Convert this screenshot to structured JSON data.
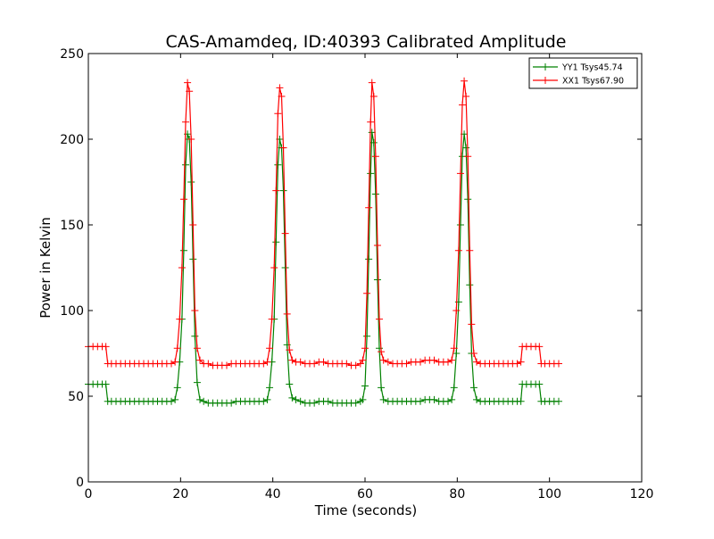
{
  "chart_data": {
    "type": "line",
    "title": "CAS-Amamdeq, ID:40393 Calibrated Amplitude",
    "xlabel": "Time (seconds)",
    "ylabel": "Power in Kelvin",
    "xlim": [
      0,
      120
    ],
    "ylim": [
      0,
      250
    ],
    "xticks": [
      0,
      20,
      40,
      60,
      80,
      100,
      120
    ],
    "yticks": [
      0,
      50,
      100,
      150,
      200,
      250
    ],
    "xtick_labels": [
      "0",
      "20",
      "40",
      "60",
      "80",
      "100",
      "120"
    ],
    "ytick_labels": [
      "0",
      "50",
      "100",
      "150",
      "200",
      "250"
    ],
    "grid": false,
    "legend_position": "top-right",
    "marker": "+",
    "series": [
      {
        "name": "YY1 Tsys45.74",
        "color": "#008000",
        "points": [
          [
            0,
            57
          ],
          [
            1,
            57
          ],
          [
            2,
            57
          ],
          [
            3,
            57
          ],
          [
            3.8,
            57
          ],
          [
            4.2,
            47
          ],
          [
            5,
            47
          ],
          [
            6,
            47
          ],
          [
            7,
            47
          ],
          [
            8,
            47
          ],
          [
            9,
            47
          ],
          [
            10,
            47
          ],
          [
            11,
            47
          ],
          [
            12,
            47
          ],
          [
            13,
            47
          ],
          [
            14,
            47
          ],
          [
            15,
            47
          ],
          [
            16,
            47
          ],
          [
            17,
            47
          ],
          [
            18,
            47
          ],
          [
            18.8,
            48
          ],
          [
            19.3,
            55
          ],
          [
            19.8,
            70
          ],
          [
            20.3,
            95
          ],
          [
            20.7,
            135
          ],
          [
            21.1,
            185
          ],
          [
            21.5,
            203
          ],
          [
            21.9,
            200
          ],
          [
            22.3,
            175
          ],
          [
            22.7,
            130
          ],
          [
            23.1,
            85
          ],
          [
            23.6,
            58
          ],
          [
            24.2,
            48
          ],
          [
            25,
            47
          ],
          [
            26,
            46
          ],
          [
            27,
            46
          ],
          [
            28,
            46
          ],
          [
            29,
            46
          ],
          [
            30,
            46
          ],
          [
            31,
            46
          ],
          [
            32,
            47
          ],
          [
            33,
            47
          ],
          [
            34,
            47
          ],
          [
            35,
            47
          ],
          [
            36,
            47
          ],
          [
            37,
            47
          ],
          [
            38,
            47
          ],
          [
            38.8,
            48
          ],
          [
            39.3,
            55
          ],
          [
            39.8,
            70
          ],
          [
            40.3,
            95
          ],
          [
            40.7,
            140
          ],
          [
            41.1,
            185
          ],
          [
            41.5,
            200
          ],
          [
            41.9,
            195
          ],
          [
            42.3,
            170
          ],
          [
            42.7,
            125
          ],
          [
            43.1,
            80
          ],
          [
            43.6,
            57
          ],
          [
            44.2,
            49
          ],
          [
            45,
            48
          ],
          [
            46,
            47
          ],
          [
            47,
            46
          ],
          [
            48,
            46
          ],
          [
            49,
            46
          ],
          [
            50,
            47
          ],
          [
            51,
            47
          ],
          [
            52,
            47
          ],
          [
            53,
            46
          ],
          [
            54,
            46
          ],
          [
            55,
            46
          ],
          [
            56,
            46
          ],
          [
            57,
            46
          ],
          [
            58,
            46
          ],
          [
            59,
            47
          ],
          [
            59.5,
            48
          ],
          [
            60,
            56
          ],
          [
            60.4,
            85
          ],
          [
            60.8,
            130
          ],
          [
            61.2,
            180
          ],
          [
            61.5,
            204
          ],
          [
            61.9,
            198
          ],
          [
            62.3,
            168
          ],
          [
            62.7,
            118
          ],
          [
            63.1,
            78
          ],
          [
            63.5,
            55
          ],
          [
            64,
            48
          ],
          [
            65,
            47
          ],
          [
            66,
            47
          ],
          [
            67,
            47
          ],
          [
            68,
            47
          ],
          [
            69,
            47
          ],
          [
            70,
            47
          ],
          [
            71,
            47
          ],
          [
            72,
            47
          ],
          [
            73,
            48
          ],
          [
            74,
            48
          ],
          [
            75,
            48
          ],
          [
            76,
            47
          ],
          [
            77,
            47
          ],
          [
            78,
            47
          ],
          [
            78.8,
            48
          ],
          [
            79.3,
            55
          ],
          [
            79.8,
            75
          ],
          [
            80.3,
            105
          ],
          [
            80.7,
            150
          ],
          [
            81.1,
            190
          ],
          [
            81.5,
            203
          ],
          [
            81.9,
            195
          ],
          [
            82.3,
            165
          ],
          [
            82.7,
            115
          ],
          [
            83.1,
            75
          ],
          [
            83.6,
            55
          ],
          [
            84.2,
            48
          ],
          [
            85,
            47
          ],
          [
            86,
            47
          ],
          [
            87,
            47
          ],
          [
            88,
            47
          ],
          [
            89,
            47
          ],
          [
            90,
            47
          ],
          [
            91,
            47
          ],
          [
            92,
            47
          ],
          [
            93,
            47
          ],
          [
            93.8,
            47
          ],
          [
            94.1,
            57
          ],
          [
            95,
            57
          ],
          [
            96,
            57
          ],
          [
            97,
            57
          ],
          [
            97.8,
            57
          ],
          [
            98.2,
            47
          ],
          [
            99,
            47
          ],
          [
            100,
            47
          ],
          [
            101,
            47
          ],
          [
            102,
            47
          ]
        ]
      },
      {
        "name": "XX1 Tsys67.90",
        "color": "#ff0000",
        "points": [
          [
            0,
            79
          ],
          [
            1,
            79
          ],
          [
            2,
            79
          ],
          [
            3,
            79
          ],
          [
            3.8,
            79
          ],
          [
            4.2,
            69
          ],
          [
            5,
            69
          ],
          [
            6,
            69
          ],
          [
            7,
            69
          ],
          [
            8,
            69
          ],
          [
            9,
            69
          ],
          [
            10,
            69
          ],
          [
            11,
            69
          ],
          [
            12,
            69
          ],
          [
            13,
            69
          ],
          [
            14,
            69
          ],
          [
            15,
            69
          ],
          [
            16,
            69
          ],
          [
            17,
            69
          ],
          [
            18,
            69
          ],
          [
            18.8,
            70
          ],
          [
            19.3,
            78
          ],
          [
            19.8,
            95
          ],
          [
            20.3,
            125
          ],
          [
            20.7,
            165
          ],
          [
            21.1,
            210
          ],
          [
            21.5,
            233
          ],
          [
            21.9,
            228
          ],
          [
            22.3,
            200
          ],
          [
            22.7,
            150
          ],
          [
            23.1,
            100
          ],
          [
            23.6,
            78
          ],
          [
            24.2,
            71
          ],
          [
            25,
            69
          ],
          [
            26,
            69
          ],
          [
            27,
            68
          ],
          [
            28,
            68
          ],
          [
            29,
            68
          ],
          [
            30,
            68
          ],
          [
            31,
            69
          ],
          [
            32,
            69
          ],
          [
            33,
            69
          ],
          [
            34,
            69
          ],
          [
            35,
            69
          ],
          [
            36,
            69
          ],
          [
            37,
            69
          ],
          [
            38,
            69
          ],
          [
            38.8,
            70
          ],
          [
            39.3,
            78
          ],
          [
            39.8,
            95
          ],
          [
            40.3,
            125
          ],
          [
            40.7,
            170
          ],
          [
            41.1,
            215
          ],
          [
            41.5,
            230
          ],
          [
            41.9,
            225
          ],
          [
            42.3,
            195
          ],
          [
            42.7,
            145
          ],
          [
            43.1,
            98
          ],
          [
            43.6,
            77
          ],
          [
            44.2,
            71
          ],
          [
            45,
            70
          ],
          [
            46,
            70
          ],
          [
            47,
            69
          ],
          [
            48,
            69
          ],
          [
            49,
            69
          ],
          [
            50,
            70
          ],
          [
            51,
            70
          ],
          [
            52,
            69
          ],
          [
            53,
            69
          ],
          [
            54,
            69
          ],
          [
            55,
            69
          ],
          [
            56,
            69
          ],
          [
            57,
            68
          ],
          [
            58,
            68
          ],
          [
            59,
            69
          ],
          [
            59.5,
            71
          ],
          [
            60,
            78
          ],
          [
            60.4,
            110
          ],
          [
            60.8,
            160
          ],
          [
            61.2,
            210
          ],
          [
            61.5,
            233
          ],
          [
            61.9,
            225
          ],
          [
            62.3,
            190
          ],
          [
            62.7,
            138
          ],
          [
            63.1,
            95
          ],
          [
            63.5,
            76
          ],
          [
            64,
            71
          ],
          [
            65,
            70
          ],
          [
            66,
            69
          ],
          [
            67,
            69
          ],
          [
            68,
            69
          ],
          [
            69,
            69
          ],
          [
            70,
            70
          ],
          [
            71,
            70
          ],
          [
            72,
            70
          ],
          [
            73,
            71
          ],
          [
            74,
            71
          ],
          [
            75,
            71
          ],
          [
            76,
            70
          ],
          [
            77,
            70
          ],
          [
            78,
            70
          ],
          [
            78.8,
            71
          ],
          [
            79.3,
            78
          ],
          [
            79.8,
            100
          ],
          [
            80.3,
            135
          ],
          [
            80.7,
            180
          ],
          [
            81.1,
            220
          ],
          [
            81.5,
            234
          ],
          [
            81.9,
            225
          ],
          [
            82.3,
            190
          ],
          [
            82.7,
            135
          ],
          [
            83.1,
            92
          ],
          [
            83.6,
            75
          ],
          [
            84.2,
            70
          ],
          [
            85,
            69
          ],
          [
            86,
            69
          ],
          [
            87,
            69
          ],
          [
            88,
            69
          ],
          [
            89,
            69
          ],
          [
            90,
            69
          ],
          [
            91,
            69
          ],
          [
            92,
            69
          ],
          [
            93,
            69
          ],
          [
            93.8,
            70
          ],
          [
            94.1,
            79
          ],
          [
            95,
            79
          ],
          [
            96,
            79
          ],
          [
            97,
            79
          ],
          [
            97.8,
            79
          ],
          [
            98.2,
            69
          ],
          [
            99,
            69
          ],
          [
            100,
            69
          ],
          [
            101,
            69
          ],
          [
            102,
            69
          ]
        ]
      }
    ]
  }
}
